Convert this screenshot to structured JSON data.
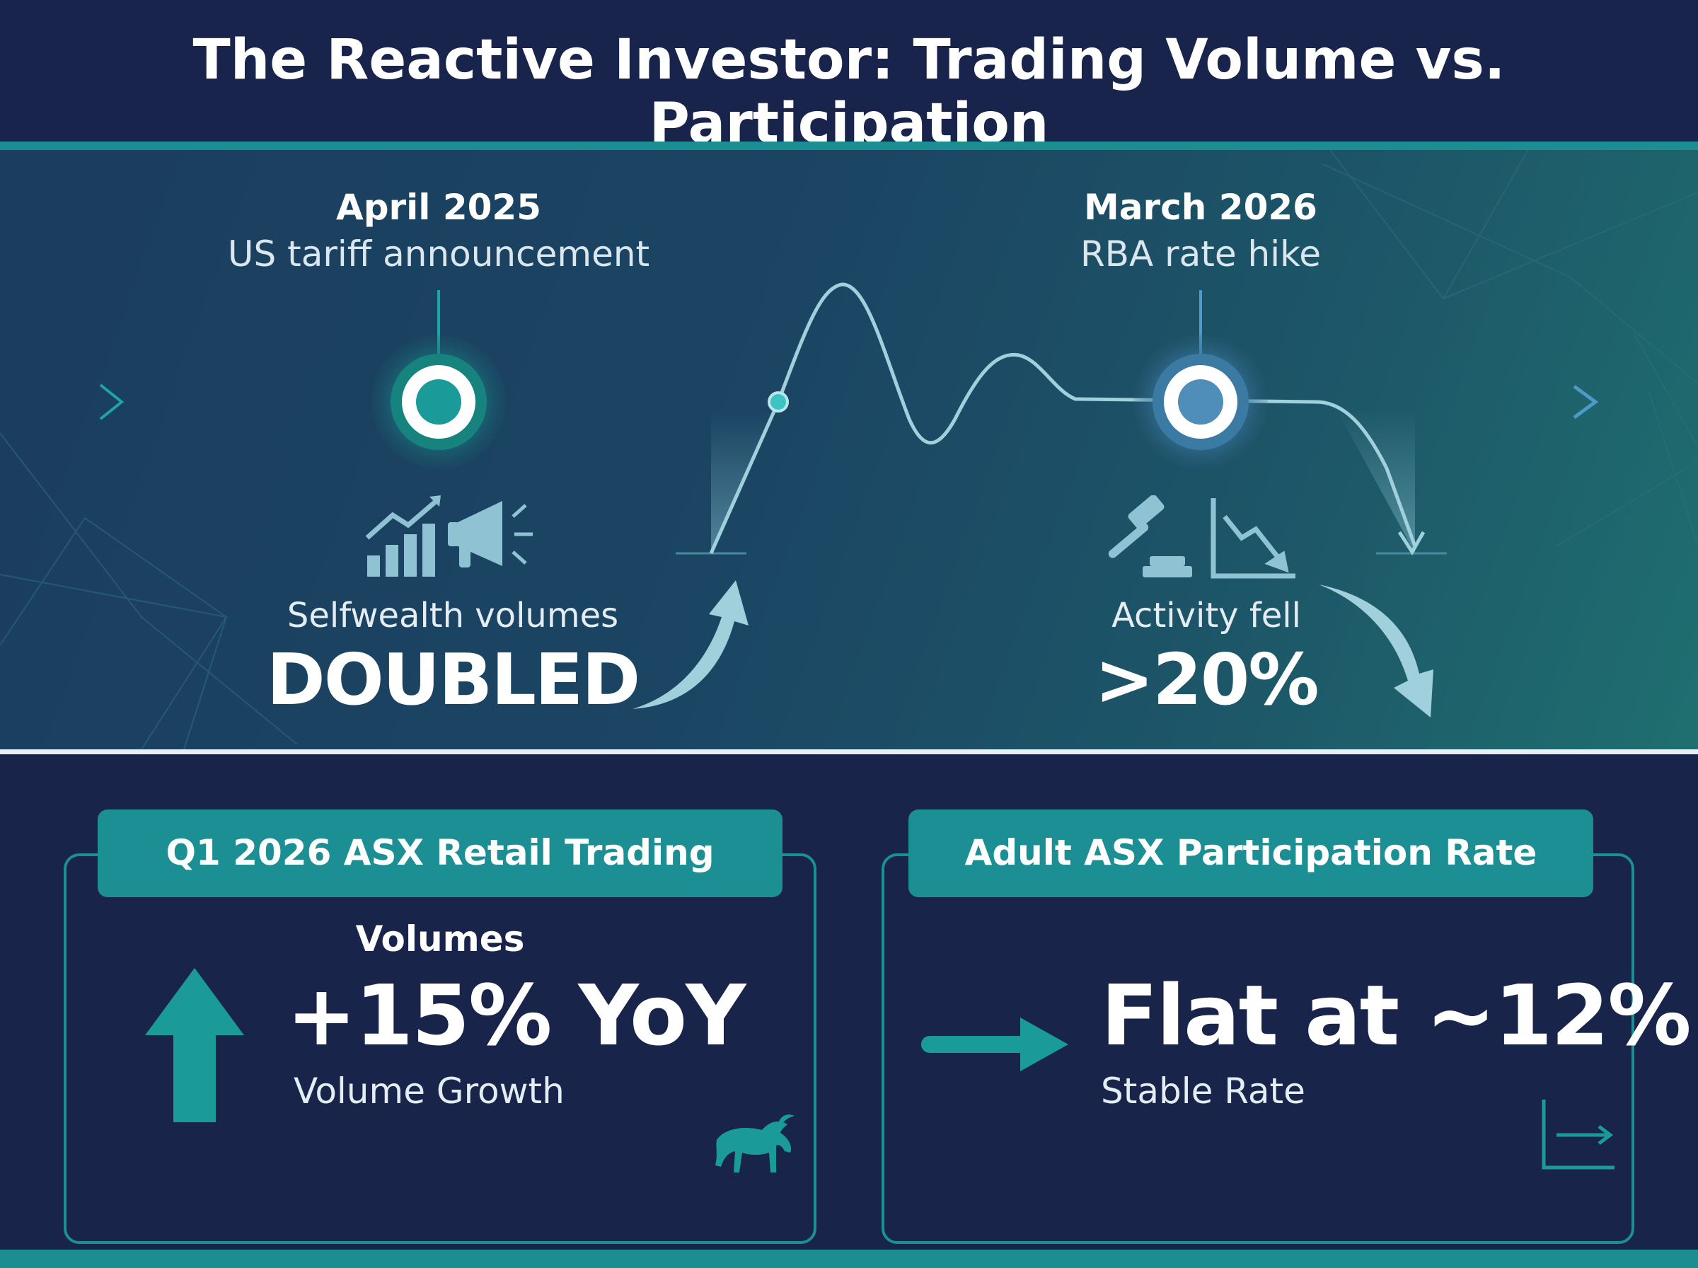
{
  "title": "The Reactive Investor: Trading Volume vs. Participation",
  "events": [
    {
      "date": "April 2025",
      "description": "US tariff announcement",
      "metric_label": "Selfwealth volumes",
      "metric_value": "DOUBLED",
      "icons": [
        "bar-chart-up-icon",
        "megaphone-icon",
        "curved-arrow-up-icon"
      ]
    },
    {
      "date": "March 2026",
      "description": "RBA rate hike",
      "metric_label": "Activity fell",
      "metric_value": ">20%",
      "icons": [
        "gavel-icon",
        "chart-down-icon",
        "curved-arrow-down-icon"
      ]
    }
  ],
  "cards": [
    {
      "heading": "Q1 2026 ASX Retail Trading Volumes",
      "value": "+15% YoY",
      "subtitle": "Volume Growth",
      "icons": [
        "arrow-up-icon",
        "bull-icon"
      ]
    },
    {
      "heading": "Adult ASX Participation Rate",
      "value": "Flat at ~12%",
      "subtitle": "Stable Rate",
      "icons": [
        "arrow-right-icon",
        "flat-chart-icon"
      ]
    }
  ],
  "colors": {
    "background": "#17244a",
    "teal": "#1b8f93",
    "line": "#9fd0dc",
    "white": "#ffffff"
  }
}
